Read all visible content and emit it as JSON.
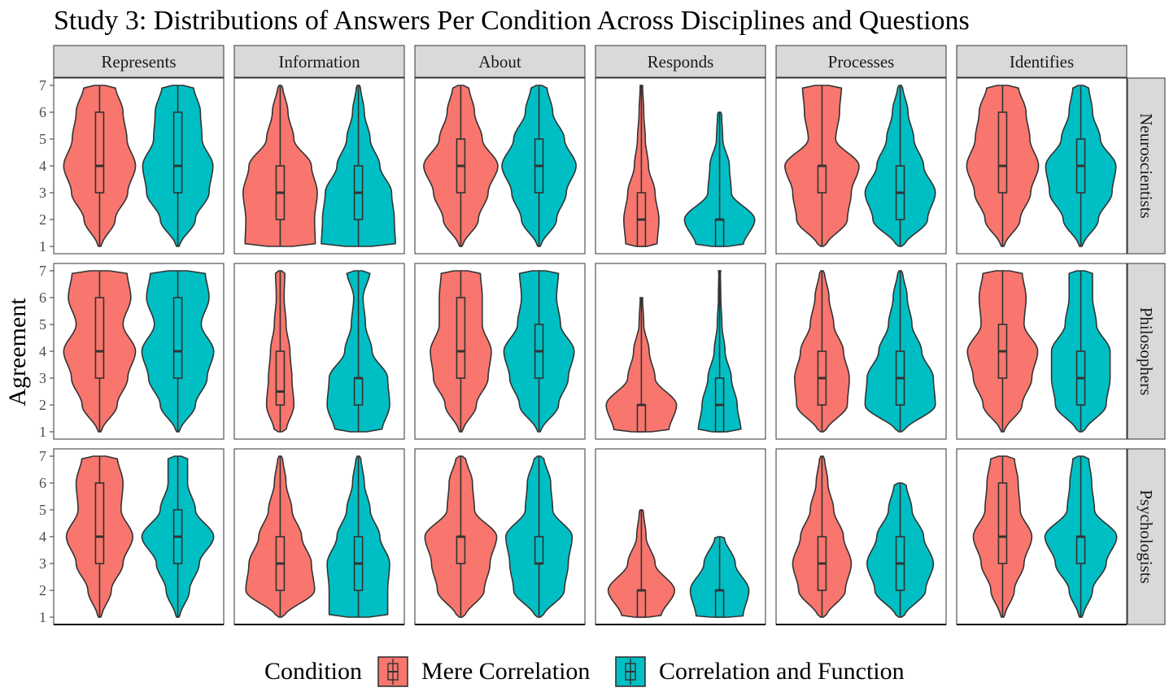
{
  "chart_data": {
    "type": "violin",
    "title": "Study 3: Distributions of Answers Per Condition Across Disciplines and Questions",
    "ylabel": "Agreement",
    "ylim": [
      1,
      7
    ],
    "y_ticks": [
      1,
      2,
      3,
      4,
      5,
      6,
      7
    ],
    "columns": [
      "Represents",
      "Information",
      "About",
      "Responds",
      "Processes",
      "Identifies"
    ],
    "rows": [
      "Neuroscientists",
      "Philosophers",
      "Psychologists"
    ],
    "legend": {
      "title": "Condition",
      "position": "bottom",
      "entries": [
        {
          "name": "Mere Correlation",
          "color": "#F8766D"
        },
        {
          "name": "Correlation and Function",
          "color": "#00BFC4"
        }
      ]
    },
    "series_colors": {
      "Mere Correlation": "#F8766D",
      "Correlation and Function": "#00BFC4"
    },
    "grid": false,
    "panels": [
      {
        "row": "Neuroscientists",
        "column": "Represents",
        "groups": [
          {
            "condition": "Mere Correlation",
            "min": 1,
            "q1": 3,
            "median": 4,
            "q3": 6,
            "max": 7,
            "density": [
              0.05,
              0.4,
              0.72,
              0.92,
              0.7,
              0.6,
              0.4
            ]
          },
          {
            "condition": "Correlation and Function",
            "min": 1,
            "q1": 3,
            "median": 4,
            "q3": 6,
            "max": 7,
            "density": [
              0.05,
              0.45,
              0.8,
              0.9,
              0.62,
              0.58,
              0.4
            ]
          }
        ]
      },
      {
        "row": "Neuroscientists",
        "column": "Information",
        "groups": [
          {
            "condition": "Mere Correlation",
            "min": 1,
            "q1": 2,
            "median": 3,
            "q3": 4,
            "max": 7,
            "density": [
              0.9,
              0.88,
              0.95,
              0.8,
              0.35,
              0.2,
              0.06
            ]
          },
          {
            "condition": "Correlation and Function",
            "min": 1,
            "q1": 2,
            "median": 3,
            "q3": 4,
            "max": 7,
            "density": [
              0.95,
              0.92,
              0.85,
              0.55,
              0.3,
              0.15,
              0.05
            ]
          }
        ]
      },
      {
        "row": "Neuroscientists",
        "column": "About",
        "groups": [
          {
            "condition": "Mere Correlation",
            "min": 1,
            "q1": 3,
            "median": 4,
            "q3": 5,
            "max": 7,
            "density": [
              0.05,
              0.45,
              0.7,
              0.95,
              0.55,
              0.35,
              0.2
            ]
          },
          {
            "condition": "Correlation and Function",
            "min": 1,
            "q1": 3,
            "median": 4,
            "q3": 5,
            "max": 7,
            "density": [
              0.05,
              0.45,
              0.7,
              0.95,
              0.65,
              0.35,
              0.2
            ]
          }
        ]
      },
      {
        "row": "Neuroscientists",
        "column": "Responds",
        "groups": [
          {
            "condition": "Mere Correlation",
            "min": 1,
            "q1": 1,
            "median": 2,
            "q3": 3,
            "max": 7,
            "density": [
              0.4,
              0.45,
              0.35,
              0.18,
              0.1,
              0.06,
              0.03
            ]
          },
          {
            "condition": "Correlation and Function",
            "min": 1,
            "q1": 1,
            "median": 2,
            "q3": 2,
            "max": 6,
            "density": [
              0.6,
              0.9,
              0.3,
              0.25,
              0.08,
              0.05,
              0.0
            ]
          }
        ]
      },
      {
        "row": "Neuroscientists",
        "column": "Processes",
        "groups": [
          {
            "condition": "Mere Correlation",
            "min": 1,
            "q1": 3,
            "median": 4,
            "q3": 4,
            "max": 7,
            "density": [
              0.1,
              0.65,
              0.75,
              0.95,
              0.35,
              0.45,
              0.5
            ]
          },
          {
            "condition": "Correlation and Function",
            "min": 1,
            "q1": 2,
            "median": 3,
            "q3": 4,
            "max": 7,
            "density": [
              0.1,
              0.7,
              0.9,
              0.6,
              0.35,
              0.2,
              0.06
            ]
          }
        ]
      },
      {
        "row": "Neuroscientists",
        "column": "Identifies",
        "groups": [
          {
            "condition": "Mere Correlation",
            "min": 1,
            "q1": 3,
            "median": 4,
            "q3": 6,
            "max": 7,
            "density": [
              0.05,
              0.45,
              0.72,
              0.92,
              0.7,
              0.6,
              0.4
            ]
          },
          {
            "condition": "Correlation and Function",
            "min": 1,
            "q1": 3,
            "median": 4,
            "q3": 5,
            "max": 7,
            "density": [
              0.05,
              0.45,
              0.8,
              0.9,
              0.5,
              0.3,
              0.2
            ]
          }
        ]
      },
      {
        "row": "Philosophers",
        "column": "Represents",
        "groups": [
          {
            "condition": "Mere Correlation",
            "min": 1,
            "q1": 3,
            "median": 4,
            "q3": 6,
            "max": 7,
            "density": [
              0.05,
              0.45,
              0.72,
              0.92,
              0.6,
              0.8,
              0.7
            ]
          },
          {
            "condition": "Correlation and Function",
            "min": 1,
            "q1": 3,
            "median": 4,
            "q3": 6,
            "max": 7,
            "density": [
              0.05,
              0.45,
              0.75,
              0.92,
              0.6,
              0.8,
              0.7
            ]
          }
        ]
      },
      {
        "row": "Philosophers",
        "column": "Information",
        "groups": [
          {
            "condition": "Mere Correlation",
            "min": 1,
            "q1": 2,
            "median": 2.5,
            "q3": 4,
            "max": 7,
            "density": [
              0.15,
              0.35,
              0.3,
              0.25,
              0.15,
              0.1,
              0.12
            ]
          },
          {
            "condition": "Correlation and Function",
            "min": 1,
            "q1": 2,
            "median": 3,
            "q3": 3,
            "max": 7,
            "density": [
              0.6,
              0.8,
              0.75,
              0.35,
              0.18,
              0.12,
              0.3
            ]
          }
        ]
      },
      {
        "row": "Philosophers",
        "column": "About",
        "groups": [
          {
            "condition": "Mere Correlation",
            "min": 1,
            "q1": 3,
            "median": 4,
            "q3": 6,
            "max": 7,
            "density": [
              0.05,
              0.4,
              0.7,
              0.78,
              0.55,
              0.55,
              0.5
            ]
          },
          {
            "condition": "Correlation and Function",
            "min": 1,
            "q1": 3,
            "median": 4,
            "q3": 5,
            "max": 7,
            "density": [
              0.05,
              0.5,
              0.75,
              0.9,
              0.55,
              0.45,
              0.5
            ]
          }
        ]
      },
      {
        "row": "Philosophers",
        "column": "Responds",
        "groups": [
          {
            "condition": "Mere Correlation",
            "min": 1,
            "q1": 1,
            "median": 2,
            "q3": 2,
            "max": 6,
            "density": [
              0.7,
              0.9,
              0.35,
              0.2,
              0.06,
              0.03,
              0.0
            ]
          },
          {
            "condition": "Correlation and Function",
            "min": 1,
            "q1": 1,
            "median": 2,
            "q3": 3,
            "max": 7,
            "density": [
              0.55,
              0.45,
              0.3,
              0.14,
              0.06,
              0.03,
              0.02
            ]
          }
        ]
      },
      {
        "row": "Philosophers",
        "column": "Processes",
        "groups": [
          {
            "condition": "Mere Correlation",
            "min": 1,
            "q1": 2,
            "median": 3,
            "q3": 4,
            "max": 7,
            "density": [
              0.1,
              0.65,
              0.7,
              0.55,
              0.3,
              0.18,
              0.06
            ]
          },
          {
            "condition": "Correlation and Function",
            "min": 1,
            "q1": 2,
            "median": 3,
            "q3": 4,
            "max": 7,
            "density": [
              0.1,
              0.9,
              0.85,
              0.55,
              0.3,
              0.18,
              0.06
            ]
          }
        ]
      },
      {
        "row": "Philosophers",
        "column": "Identifies",
        "groups": [
          {
            "condition": "Mere Correlation",
            "min": 1,
            "q1": 3,
            "median": 4,
            "q3": 5,
            "max": 7,
            "density": [
              0.05,
              0.5,
              0.75,
              0.9,
              0.55,
              0.6,
              0.5
            ]
          },
          {
            "condition": "Correlation and Function",
            "min": 1,
            "q1": 2,
            "median": 3,
            "q3": 4,
            "max": 7,
            "density": [
              0.1,
              0.65,
              0.75,
              0.75,
              0.4,
              0.3,
              0.3
            ]
          }
        ]
      },
      {
        "row": "Psychologists",
        "column": "Represents",
        "groups": [
          {
            "condition": "Mere Correlation",
            "min": 1,
            "q1": 3,
            "median": 4,
            "q3": 6,
            "max": 7,
            "density": [
              0.05,
              0.3,
              0.6,
              0.85,
              0.55,
              0.6,
              0.45
            ]
          },
          {
            "condition": "Correlation and Function",
            "min": 1,
            "q1": 3,
            "median": 4,
            "q3": 5,
            "max": 7,
            "density": [
              0.05,
              0.3,
              0.55,
              0.92,
              0.45,
              0.25,
              0.25
            ]
          }
        ]
      },
      {
        "row": "Psychologists",
        "column": "Information",
        "groups": [
          {
            "condition": "Mere Correlation",
            "min": 1,
            "q1": 2,
            "median": 3,
            "q3": 4,
            "max": 7,
            "density": [
              0.1,
              0.88,
              0.8,
              0.55,
              0.3,
              0.15,
              0.06
            ]
          },
          {
            "condition": "Correlation and Function",
            "min": 1,
            "q1": 2,
            "median": 3,
            "q3": 4,
            "max": 7,
            "density": [
              0.75,
              0.75,
              0.8,
              0.55,
              0.3,
              0.15,
              0.06
            ]
          }
        ]
      },
      {
        "row": "Psychologists",
        "column": "About",
        "groups": [
          {
            "condition": "Mere Correlation",
            "min": 1,
            "q1": 3,
            "median": 4,
            "q3": 4,
            "max": 7,
            "density": [
              0.1,
              0.6,
              0.75,
              0.92,
              0.35,
              0.3,
              0.12
            ]
          },
          {
            "condition": "Correlation and Function",
            "min": 1,
            "q1": 3,
            "median": 3,
            "q3": 4,
            "max": 7,
            "density": [
              0.1,
              0.65,
              0.75,
              0.85,
              0.35,
              0.3,
              0.12
            ]
          }
        ]
      },
      {
        "row": "Psychologists",
        "column": "Responds",
        "groups": [
          {
            "condition": "Mere Correlation",
            "min": 1,
            "q1": 1,
            "median": 2,
            "q3": 2,
            "max": 5,
            "density": [
              0.5,
              0.85,
              0.35,
              0.12,
              0.05,
              0.0,
              0.0
            ]
          },
          {
            "condition": "Correlation and Function",
            "min": 1,
            "q1": 1,
            "median": 2,
            "q3": 2,
            "max": 4,
            "density": [
              0.6,
              0.75,
              0.4,
              0.12,
              0.0,
              0.0,
              0.0
            ]
          }
        ]
      },
      {
        "row": "Psychologists",
        "column": "Processes",
        "groups": [
          {
            "condition": "Mere Correlation",
            "min": 1,
            "q1": 2,
            "median": 3,
            "q3": 4,
            "max": 7,
            "density": [
              0.1,
              0.6,
              0.75,
              0.55,
              0.3,
              0.15,
              0.06
            ]
          },
          {
            "condition": "Correlation and Function",
            "min": 1,
            "q1": 2,
            "median": 3,
            "q3": 4,
            "max": 6,
            "density": [
              0.1,
              0.65,
              0.85,
              0.6,
              0.3,
              0.15,
              0.0
            ]
          }
        ]
      },
      {
        "row": "Psychologists",
        "column": "Identifies",
        "groups": [
          {
            "condition": "Mere Correlation",
            "min": 1,
            "q1": 3,
            "median": 4,
            "q3": 6,
            "max": 7,
            "density": [
              0.05,
              0.3,
              0.55,
              0.75,
              0.45,
              0.4,
              0.3
            ]
          },
          {
            "condition": "Correlation and Function",
            "min": 1,
            "q1": 3,
            "median": 4,
            "q3": 4,
            "max": 7,
            "density": [
              0.05,
              0.3,
              0.65,
              0.92,
              0.35,
              0.28,
              0.2
            ]
          }
        ]
      }
    ]
  }
}
